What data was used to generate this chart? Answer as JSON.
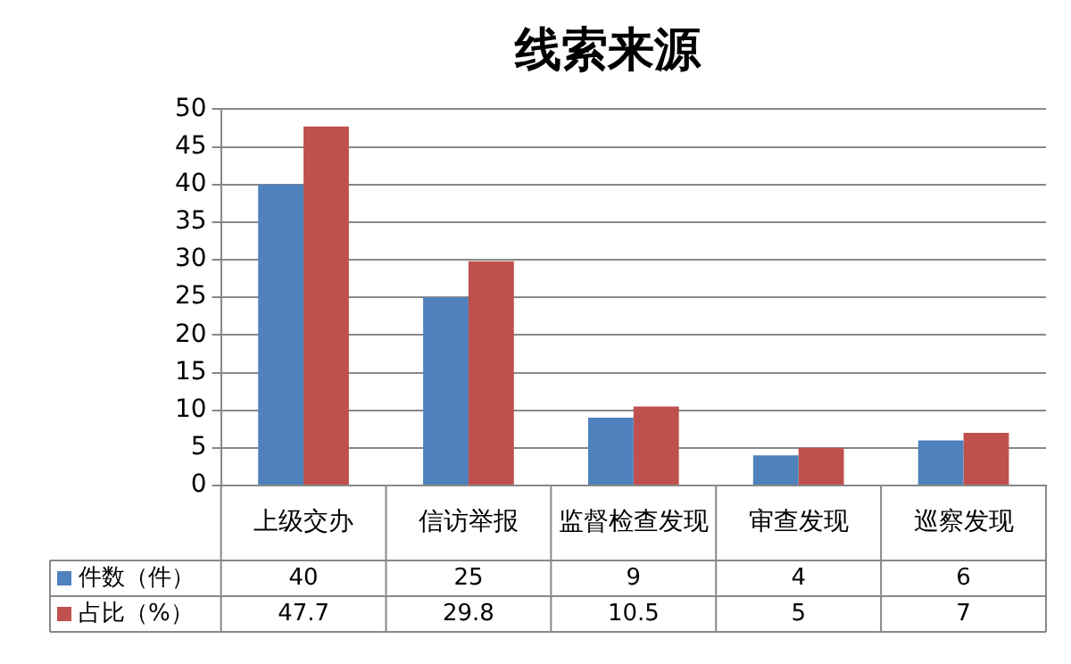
{
  "chart_data": {
    "type": "bar",
    "title": "线索来源",
    "categories": [
      "上级交办",
      "信访举报",
      "监督检查发现",
      "审查发现",
      "巡察发现"
    ],
    "series": [
      {
        "name": "件数（件）",
        "color": "#4f81bd",
        "values": [
          40,
          25,
          9,
          4,
          6
        ]
      },
      {
        "name": "占比（%）",
        "color": "#c0504d",
        "values": [
          47.7,
          29.8,
          10.5,
          5,
          7
        ]
      }
    ],
    "ylim": [
      0,
      50
    ],
    "yticks": [
      0,
      5,
      10,
      15,
      20,
      25,
      30,
      35,
      40,
      45,
      50
    ],
    "grid": "y",
    "legend": "bottom",
    "data_labels": true
  }
}
